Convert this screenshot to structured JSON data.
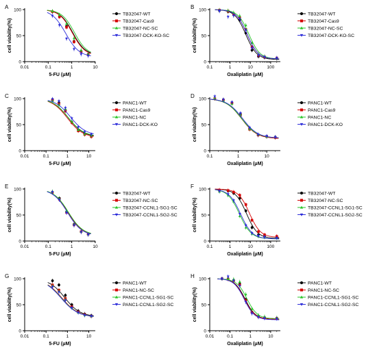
{
  "colors": {
    "black": "#000000",
    "red": "#d40000",
    "green": "#27c427",
    "blue": "#2b2bd9"
  },
  "chart_data": [
    {
      "panel": "A",
      "type": "line",
      "xscale": "log",
      "xlabel": "5-FU (μM)",
      "ylabel": "cell viability(%)",
      "xlim": [
        0.01,
        10
      ],
      "ylim": [
        0,
        100
      ],
      "xticks": [
        0.01,
        0.1,
        1,
        10
      ],
      "xtick_labels": [
        "0.01",
        "0.1",
        "1",
        "10"
      ],
      "yticks": [
        0,
        50,
        100
      ],
      "ytick_labels": [
        "0",
        "50",
        "100"
      ],
      "x": [
        0.15,
        0.3,
        0.6,
        1.25,
        2.5,
        5
      ],
      "series": [
        {
          "name": "TB32047-WT",
          "color": "#000000",
          "marker": "circle",
          "values": [
            96,
            87,
            68,
            39,
            20,
            14
          ],
          "ic50": 1.1,
          "hill": 1.6
        },
        {
          "name": "TB32047-Cas9",
          "color": "#d40000",
          "marker": "square",
          "values": [
            96,
            86,
            66,
            38,
            19,
            13
          ],
          "ic50": 1.05,
          "hill": 1.6
        },
        {
          "name": "TB32047-NC-SC",
          "color": "#27c427",
          "marker": "triangle",
          "values": [
            97,
            90,
            73,
            45,
            22,
            14
          ],
          "ic50": 1.3,
          "hill": 1.6
        },
        {
          "name": "TB32047-DCK-KO-SC",
          "color": "#2b2bd9",
          "marker": "triangle-down",
          "values": [
            88,
            70,
            44,
            24,
            14,
            11
          ],
          "ic50": 0.55,
          "hill": 1.5
        }
      ]
    },
    {
      "panel": "B",
      "type": "line",
      "xscale": "log",
      "xlabel": "Oxaliplatin (μM)",
      "ylabel": "cell viability(%)",
      "xlim": [
        0.1,
        300
      ],
      "ylim": [
        0,
        100
      ],
      "xticks": [
        0.1,
        1,
        10,
        100
      ],
      "xtick_labels": [
        "0.1",
        "1",
        "10",
        "100"
      ],
      "yticks": [
        0,
        50,
        100
      ],
      "ytick_labels": [
        "0",
        "50",
        "100"
      ],
      "x": [
        0.3,
        0.8,
        1.5,
        3,
        6,
        12,
        25,
        50,
        200
      ],
      "series": [
        {
          "name": "TB32047-WT",
          "color": "#000000",
          "marker": "circle",
          "values": [
            98,
            96,
            90,
            80,
            55,
            22,
            10,
            8,
            6
          ],
          "ic50": 6.0,
          "hill": 1.6
        },
        {
          "name": "TB32047-Cas9",
          "color": "#d40000",
          "marker": "square",
          "values": [
            99,
            97,
            92,
            84,
            62,
            28,
            12,
            9,
            7
          ],
          "ic50": 7.0,
          "hill": 1.6
        },
        {
          "name": "TB32047-NC-SC",
          "color": "#27c427",
          "marker": "triangle",
          "values": [
            99,
            98,
            94,
            88,
            70,
            36,
            14,
            10,
            7
          ],
          "ic50": 8.5,
          "hill": 1.6
        },
        {
          "name": "TB32047-DCK-KO-SC",
          "color": "#2b2bd9",
          "marker": "triangle-down",
          "values": [
            97,
            86,
            88,
            82,
            60,
            26,
            12,
            9,
            7
          ],
          "ic50": 7.0,
          "hill": 1.6
        }
      ]
    },
    {
      "panel": "C",
      "type": "line",
      "xscale": "log",
      "xlabel": "5-FU (μM)",
      "ylabel": "cell viability(%)",
      "xlim": [
        0.01,
        20
      ],
      "ylim": [
        0,
        100
      ],
      "xticks": [
        0.01,
        0.1,
        1,
        10
      ],
      "xtick_labels": [
        "0.01",
        "0.1",
        "1",
        "10"
      ],
      "yticks": [
        0,
        50,
        100
      ],
      "ytick_labels": [
        "0",
        "50",
        "100"
      ],
      "x": [
        0.2,
        0.4,
        0.8,
        1.6,
        3.2,
        6.4,
        13
      ],
      "series": [
        {
          "name": "PANC1-WT",
          "color": "#000000",
          "marker": "circle",
          "values": [
            98,
            92,
            78,
            55,
            40,
            32,
            28
          ],
          "ic50": 1.1,
          "hill": 1.2
        },
        {
          "name": "PANC1-Cas9",
          "color": "#d40000",
          "marker": "square",
          "values": [
            97,
            90,
            76,
            54,
            38,
            31,
            27
          ],
          "ic50": 1.0,
          "hill": 1.2
        },
        {
          "name": "PANC1-NC",
          "color": "#27c427",
          "marker": "triangle",
          "values": [
            96,
            88,
            80,
            56,
            40,
            32,
            29
          ],
          "ic50": 1.1,
          "hill": 1.2
        },
        {
          "name": "PANC1-DCK-KO",
          "color": "#2b2bd9",
          "marker": "triangle-down",
          "values": [
            99,
            95,
            82,
            62,
            45,
            36,
            31
          ],
          "ic50": 1.4,
          "hill": 1.2
        }
      ]
    },
    {
      "panel": "D",
      "type": "line",
      "xscale": "log",
      "xlabel": "Oxaliplatin (μM)",
      "ylabel": "cell viability(%)",
      "xlim": [
        0.1,
        30
      ],
      "ylim": [
        0,
        100
      ],
      "xticks": [
        0.1,
        1,
        10
      ],
      "xtick_labels": [
        "0.1",
        "1",
        "10"
      ],
      "yticks": [
        0,
        50,
        100
      ],
      "ytick_labels": [
        "0",
        "50",
        "100"
      ],
      "x": [
        0.15,
        0.3,
        0.6,
        1.2,
        2.5,
        5,
        10,
        20
      ],
      "series": [
        {
          "name": "PANC1-WT",
          "color": "#000000",
          "marker": "circle",
          "values": [
            100,
            98,
            92,
            70,
            42,
            30,
            27,
            26
          ],
          "ic50": 1.3,
          "hill": 1.6
        },
        {
          "name": "PANC1-Cas9",
          "color": "#d40000",
          "marker": "square",
          "values": [
            100,
            97,
            91,
            68,
            41,
            30,
            27,
            25
          ],
          "ic50": 1.3,
          "hill": 1.6
        },
        {
          "name": "PANC1-NC",
          "color": "#27c427",
          "marker": "triangle",
          "values": [
            101,
            96,
            90,
            69,
            42,
            31,
            27,
            26
          ],
          "ic50": 1.3,
          "hill": 1.6
        },
        {
          "name": "PANC1-DCK-KO",
          "color": "#2b2bd9",
          "marker": "triangle-down",
          "values": [
            104,
            98,
            93,
            72,
            44,
            31,
            28,
            26
          ],
          "ic50": 1.4,
          "hill": 1.6
        }
      ]
    },
    {
      "panel": "E",
      "type": "line",
      "xscale": "log",
      "xlabel": "5-FU (μM)",
      "ylabel": "cell viability(%)",
      "xlim": [
        0.01,
        10
      ],
      "ylim": [
        0,
        100
      ],
      "xticks": [
        0.01,
        0.1,
        1,
        10
      ],
      "xtick_labels": [
        "0.01",
        "0.1",
        "1",
        "10"
      ],
      "yticks": [
        0,
        50,
        100
      ],
      "ytick_labels": [
        "0",
        "50",
        "100"
      ],
      "x": [
        0.15,
        0.3,
        0.6,
        1.25,
        2.5,
        5
      ],
      "series": [
        {
          "name": "TB32047-WT",
          "color": "#000000",
          "marker": "circle",
          "values": [
            94,
            82,
            56,
            32,
            18,
            13
          ],
          "ic50": 0.7,
          "hill": 1.4
        },
        {
          "name": "TB32047-NC-SC",
          "color": "#d40000",
          "marker": "square",
          "values": [
            93,
            80,
            55,
            31,
            18,
            13
          ],
          "ic50": 0.68,
          "hill": 1.4
        },
        {
          "name": "TB32047-CCNL1-SG1-SC",
          "color": "#27c427",
          "marker": "triangle",
          "values": [
            95,
            81,
            58,
            32,
            18,
            13
          ],
          "ic50": 0.72,
          "hill": 1.4
        },
        {
          "name": "TB32047-CCNL1-SG2-SC",
          "color": "#2b2bd9",
          "marker": "triangle-down",
          "values": [
            94,
            79,
            54,
            30,
            17,
            12
          ],
          "ic50": 0.66,
          "hill": 1.4
        }
      ]
    },
    {
      "panel": "F",
      "type": "line",
      "xscale": "log",
      "xlabel": "Oxaliplatin (μM)",
      "ylabel": "cell viability(%)",
      "xlim": [
        0.1,
        300
      ],
      "ylim": [
        0,
        100
      ],
      "xticks": [
        0.1,
        1,
        10,
        100
      ],
      "xtick_labels": [
        "0.1",
        "1",
        "10",
        "100"
      ],
      "yticks": [
        0,
        50,
        100
      ],
      "ytick_labels": [
        "0",
        "50",
        "100"
      ],
      "x": [
        0.3,
        0.8,
        1.5,
        3,
        6,
        12,
        25,
        50,
        200
      ],
      "series": [
        {
          "name": "TB32047-WT",
          "color": "#000000",
          "marker": "circle",
          "values": [
            97,
            96,
            92,
            82,
            58,
            26,
            12,
            9,
            7
          ],
          "ic50": 6.5,
          "hill": 1.6
        },
        {
          "name": "TB32047-NC-SC",
          "color": "#d40000",
          "marker": "square",
          "values": [
            98,
            97,
            94,
            88,
            70,
            40,
            18,
            12,
            9
          ],
          "ic50": 9.0,
          "hill": 1.6
        },
        {
          "name": "TB32047-CCNL1-SG1-SC",
          "color": "#27c427",
          "marker": "triangle",
          "values": [
            95,
            88,
            76,
            48,
            26,
            14,
            9,
            7,
            6
          ],
          "ic50": 2.9,
          "hill": 1.5
        },
        {
          "name": "TB32047-CCNL1-SG2-SC",
          "color": "#2b2bd9",
          "marker": "triangle-down",
          "values": [
            96,
            90,
            78,
            52,
            30,
            15,
            10,
            8,
            6
          ],
          "ic50": 3.3,
          "hill": 1.5
        }
      ]
    },
    {
      "panel": "G",
      "type": "line",
      "xscale": "log",
      "xlabel": "5-FU (μM)",
      "ylabel": "cell viability(%)",
      "xlim": [
        0.01,
        20
      ],
      "ylim": [
        0,
        100
      ],
      "xticks": [
        0.01,
        0.1,
        1,
        10
      ],
      "xtick_labels": [
        "0.01",
        "0.1",
        "1",
        "10"
      ],
      "yticks": [
        0,
        50,
        100
      ],
      "ytick_labels": [
        "0",
        "50",
        "100"
      ],
      "x": [
        0.2,
        0.4,
        0.8,
        1.6,
        3.2,
        6.4,
        13
      ],
      "series": [
        {
          "name": "PANC1-WT",
          "color": "#000000",
          "marker": "circle",
          "values": [
            96,
            88,
            68,
            50,
            38,
            32,
            29
          ],
          "ic50": 0.75,
          "hill": 1.2
        },
        {
          "name": "PANC1-NC-SC",
          "color": "#d40000",
          "marker": "square",
          "values": [
            88,
            78,
            62,
            46,
            36,
            31,
            28
          ],
          "ic50": 0.55,
          "hill": 1.1
        },
        {
          "name": "PANC1-CCNL1-SG1-SC",
          "color": "#27c427",
          "marker": "triangle",
          "values": [
            86,
            76,
            60,
            44,
            35,
            30,
            28
          ],
          "ic50": 0.52,
          "hill": 1.1
        },
        {
          "name": "PANC1-CCNL1-SG2-SC",
          "color": "#2b2bd9",
          "marker": "triangle-down",
          "values": [
            84,
            74,
            58,
            44,
            35,
            30,
            28
          ],
          "ic50": 0.5,
          "hill": 1.1
        }
      ]
    },
    {
      "panel": "H",
      "type": "line",
      "xscale": "log",
      "xlabel": "Oxaliplatin (μM)",
      "ylabel": "cell viability(%)",
      "xlim": [
        0.01,
        30
      ],
      "ylim": [
        0,
        100
      ],
      "xticks": [
        0.01,
        0.1,
        1,
        10
      ],
      "xtick_labels": [
        "0.01",
        "0.1",
        "1",
        "10"
      ],
      "yticks": [
        0,
        50,
        100
      ],
      "ytick_labels": [
        "0",
        "50",
        "100"
      ],
      "x": [
        0.04,
        0.08,
        0.15,
        0.3,
        0.6,
        1.2,
        2.5,
        5,
        20
      ],
      "series": [
        {
          "name": "PANC1-WT",
          "color": "#000000",
          "marker": "circle",
          "values": [
            100,
            100,
            97,
            90,
            60,
            36,
            28,
            25,
            24
          ],
          "ic50": 0.55,
          "hill": 1.7
        },
        {
          "name": "PANC1-NC-SC",
          "color": "#d40000",
          "marker": "square",
          "values": [
            100,
            99,
            96,
            88,
            58,
            35,
            27,
            25,
            24
          ],
          "ic50": 0.52,
          "hill": 1.7
        },
        {
          "name": "PANC1-CCNL1-SG1-SC",
          "color": "#27c427",
          "marker": "triangle",
          "values": [
            100,
            100,
            99,
            94,
            70,
            42,
            30,
            27,
            25
          ],
          "ic50": 0.68,
          "hill": 1.7
        },
        {
          "name": "PANC1-CCNL1-SG2-SC",
          "color": "#2b2bd9",
          "marker": "triangle-down",
          "values": [
            100,
            104,
            96,
            86,
            55,
            33,
            26,
            24,
            23
          ],
          "ic50": 0.5,
          "hill": 1.7
        }
      ]
    }
  ]
}
